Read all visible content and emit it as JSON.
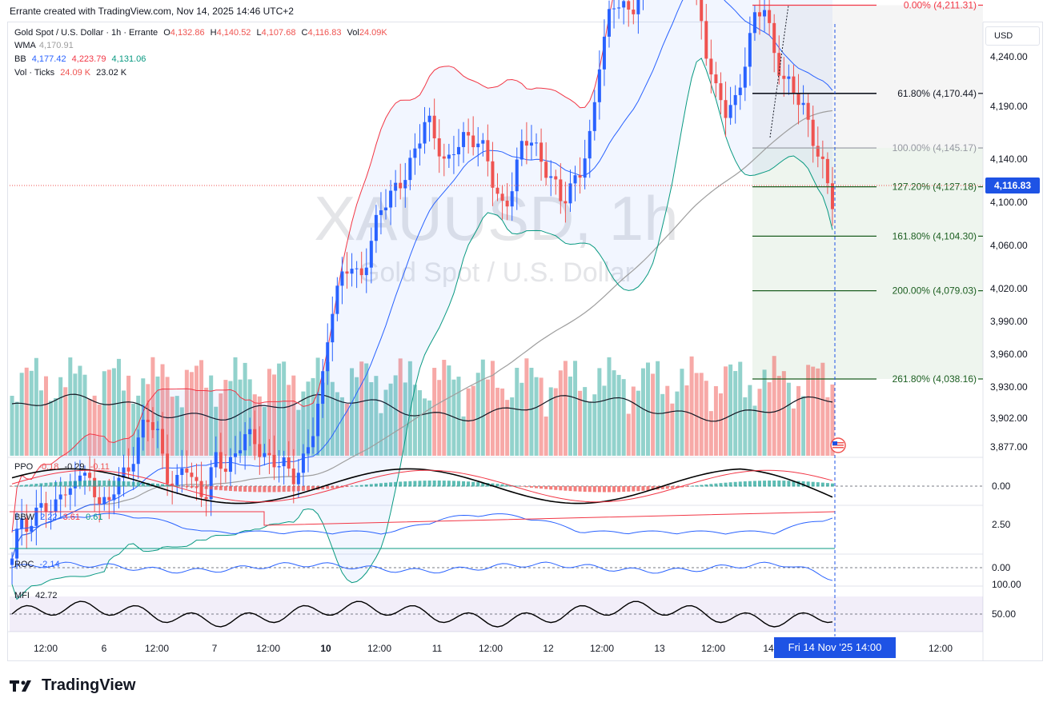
{
  "header": {
    "credit": "Errante created with TradingView.com, Nov 14, 2025 14:46 UTC+2"
  },
  "legend": {
    "title": "Gold Spot / U.S. Dollar · 1h · Errante",
    "o_label": "O",
    "o": "4,132.86",
    "h_label": "H",
    "h": "4,140.52",
    "l_label": "L",
    "l": "4,107.68",
    "c_label": "C",
    "c": "4,116.83",
    "vol_label": "Vol",
    "vol": "24.09K",
    "wma_label": "WMA",
    "wma": "4,170.91",
    "bb_label": "BB",
    "bb_mid": "4,177.42",
    "bb_up": "4,223.79",
    "bb_low": "4,131.06",
    "ticks_label": "Vol · Ticks",
    "ticks_a": "24.09 K",
    "ticks_b": "23.02 K"
  },
  "watermark": {
    "symbol": "XAUUSD, 1h",
    "name": "Gold Spot / U.S. Dollar"
  },
  "currency": "USD",
  "last_price": "4,116.83",
  "crosshair_date": "Fri 14 Nov '25   14:00",
  "brand": "TradingView",
  "colors": {
    "up": "#26a69a",
    "down": "#ef5350",
    "accent": "#1e53e5",
    "bbUpper": "#f23645",
    "bbLower": "#089981",
    "bbBasis": "#2962ff",
    "wma": "#9e9e9e"
  },
  "chart_data": {
    "type": "candlestick",
    "x_ticks": [
      "12:00",
      "6",
      "12:00",
      "7",
      "12:00",
      "10",
      "12:00",
      "11",
      "12:00",
      "12",
      "12:00",
      "13",
      "12:00",
      "14",
      "12:00"
    ],
    "y_ticks": [
      "4,240.00",
      "4,190.00",
      "4,140.00",
      "4,100.00",
      "4,060.00",
      "4,020.00",
      "3,990.00",
      "3,960.00",
      "3,930.00",
      "3,902.00",
      "3,877.00"
    ],
    "fib_levels": [
      {
        "label": "0.00% (4,211.31)",
        "color": "#f23645"
      },
      {
        "label": "61.80% (4,170.44)",
        "color": "#131722"
      },
      {
        "label": "100.00% (4,145.17)",
        "color": "#9598a1"
      },
      {
        "label": "127.20% (4,127.18)",
        "color": "#1b5e20"
      },
      {
        "label": "161.80% (4,104.30)",
        "color": "#1b5e20"
      },
      {
        "label": "200.00% (4,079.03)",
        "color": "#1b5e20"
      },
      {
        "label": "261.80% (4,038.16)",
        "color": "#1b5e20"
      }
    ],
    "price_path": [
      3953,
      3975,
      3970,
      3982,
      3972,
      3990,
      3984,
      3995,
      3990,
      3985,
      3978,
      3992,
      3996,
      4010,
      4018,
      4015,
      3995,
      3988,
      3998,
      3990,
      3984,
      4000,
      3997,
      4003,
      4012,
      4008,
      4005,
      4000,
      3998,
      3992,
      4000,
      4010,
      4030,
      4070,
      4085,
      4090,
      4083,
      4100,
      4115,
      4120,
      4130,
      4135,
      4145,
      4160,
      4150,
      4135,
      4145,
      4152,
      4150,
      4142,
      4126,
      4118,
      4130,
      4148,
      4150,
      4138,
      4128,
      4120,
      4130,
      4135,
      4150,
      4192,
      4210,
      4212,
      4205,
      4220,
      4225,
      4230,
      4235,
      4242,
      4234,
      4213,
      4190,
      4170,
      4160,
      4168,
      4188,
      4205,
      4210,
      4190,
      4176,
      4170,
      4165,
      4150,
      4135,
      4116.83
    ],
    "indicators": {
      "ppo": {
        "label": "PPO",
        "values": [
          "-0.18",
          "-0.29",
          "-0.11"
        ],
        "axis": "0.00"
      },
      "bbw": {
        "label": "BBW",
        "values": [
          "2.22",
          "3.61",
          "0.61"
        ],
        "axis": "2.50"
      },
      "roc": {
        "label": "ROC",
        "values": [
          "-2.14"
        ],
        "axis": "0.00"
      },
      "mfi": {
        "label": "MFI",
        "values": [
          "42.72"
        ],
        "axis_top": "100.00",
        "axis": "50.00"
      }
    }
  }
}
